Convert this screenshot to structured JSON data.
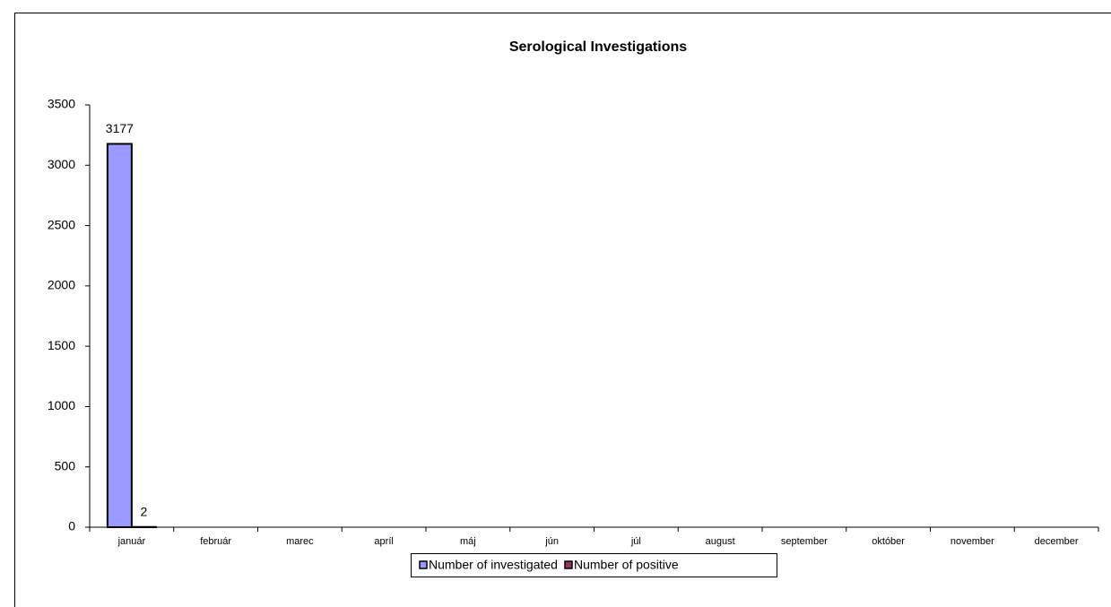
{
  "chart_data": {
    "type": "bar",
    "title": "Serological Investigations",
    "categories": [
      "január",
      "február",
      "marec",
      "apríl",
      "máj",
      "jún",
      "júl",
      "august",
      "september",
      "október",
      "november",
      "december"
    ],
    "series": [
      {
        "name": "Number of investigated",
        "color": "#9999ff",
        "values": [
          3177,
          null,
          null,
          null,
          null,
          null,
          null,
          null,
          null,
          null,
          null,
          null
        ]
      },
      {
        "name": "Number of positive",
        "color": "#993366",
        "values": [
          2,
          null,
          null,
          null,
          null,
          null,
          null,
          null,
          null,
          null,
          null,
          null
        ]
      }
    ],
    "ylim": [
      0,
      3500
    ],
    "yticks": [
      0,
      500,
      1000,
      1500,
      2000,
      2500,
      3000,
      3500
    ],
    "grid": false,
    "legend": "bottom"
  }
}
